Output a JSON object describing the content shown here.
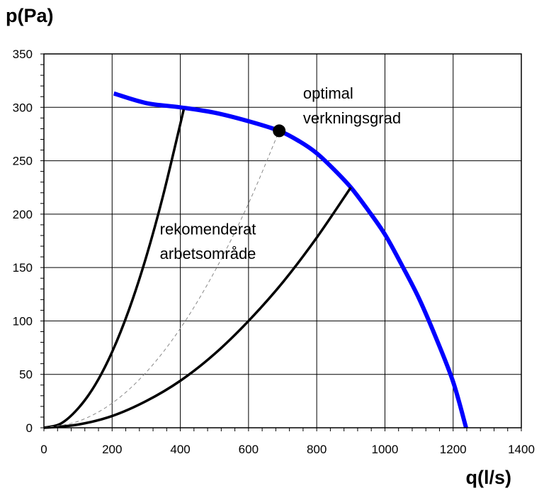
{
  "chart_data": {
    "type": "line",
    "ylabel": "p(Pa)",
    "xlabel": "q(l/s)",
    "xlim": [
      0,
      1400
    ],
    "ylim": [
      0,
      350
    ],
    "grid": true,
    "x_ticks": [
      "0",
      "200",
      "400",
      "600",
      "800",
      "1000",
      "1200",
      "1400"
    ],
    "y_ticks": [
      "0",
      "50",
      "100",
      "150",
      "200",
      "250",
      "300",
      "350"
    ],
    "series": [
      {
        "color": "#0000ff",
        "style": "thick",
        "x": [
          205,
          300,
          400,
          500,
          600,
          690,
          750,
          800,
          850,
          900,
          950,
          1000,
          1050,
          1100,
          1150,
          1200,
          1238
        ],
        "y": [
          313,
          304,
          300,
          295,
          287,
          278,
          268,
          257,
          242,
          225,
          204,
          181,
          152,
          121,
          84,
          43,
          0
        ]
      },
      {
        "color": "#000000",
        "style": "solid",
        "x": [
          0,
          50,
          100,
          150,
          200,
          250,
          300,
          350,
          410
        ],
        "y": [
          0,
          4,
          18,
          40,
          71,
          111,
          160,
          218,
          298
        ]
      },
      {
        "color": "#000000",
        "style": "solid",
        "x": [
          0,
          100,
          200,
          300,
          400,
          500,
          600,
          700,
          800,
          900
        ],
        "y": [
          0,
          3,
          11,
          25,
          44,
          69,
          100,
          136,
          178,
          225
        ]
      },
      {
        "color": "#888888",
        "style": "dashed",
        "x": [
          0,
          100,
          200,
          300,
          400,
          500,
          600,
          690
        ],
        "y": [
          0,
          6,
          23,
          52,
          93,
          146,
          210,
          278
        ]
      }
    ],
    "points": [
      {
        "x": 690,
        "y": 278,
        "color": "#000000"
      }
    ],
    "annotations": [
      {
        "text": "optimal",
        "x": 760,
        "y": 308
      },
      {
        "text": "verkningsgrad",
        "x": 760,
        "y": 285
      },
      {
        "text": "rekomenderat",
        "x": 340,
        "y": 181
      },
      {
        "text": "arbetsområde",
        "x": 340,
        "y": 158
      }
    ]
  }
}
